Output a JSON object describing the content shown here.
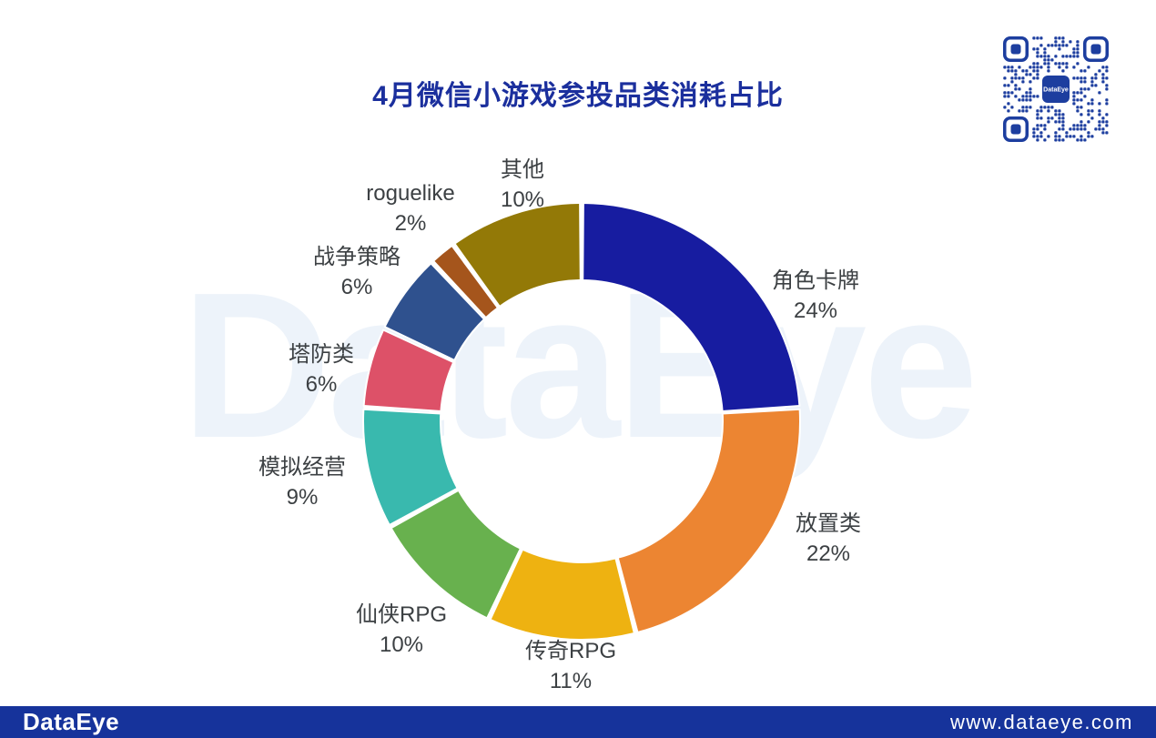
{
  "title": "4月微信小游戏参投品类消耗占比",
  "watermark": "DataEye",
  "qr": {
    "label": "DataEye"
  },
  "footer": {
    "logo": "DataEye",
    "url": "www.dataeye.com"
  },
  "colors": {
    "title_blue": "#1B2F9D",
    "label_text": "#3C4043",
    "qr_blue": "#1D3E9F",
    "watermark": "#EDF3FA",
    "footer_bar": "#16339B"
  },
  "chart_data": {
    "type": "pie",
    "subtype": "donut",
    "title": "4月微信小游戏参投品类消耗占比",
    "unit": "%",
    "start_angle": "12 o'clock, clockwise",
    "inner_radius_ratio": 0.65,
    "legend_position": "none",
    "label_style": "outside, category name over percent",
    "slices": [
      {
        "name": "角色卡牌",
        "value": 24,
        "color": "#171CA0"
      },
      {
        "name": "放置类",
        "value": 22,
        "color": "#EC8532"
      },
      {
        "name": "传奇RPG",
        "value": 11,
        "color": "#EEB211"
      },
      {
        "name": "仙侠RPG",
        "value": 10,
        "color": "#68B14E"
      },
      {
        "name": "模拟经营",
        "value": 9,
        "color": "#39B9AE"
      },
      {
        "name": "塔防类",
        "value": 6,
        "color": "#DD5168"
      },
      {
        "name": "战争策略",
        "value": 6,
        "color": "#2F518E"
      },
      {
        "name": "roguelike",
        "value": 2,
        "color": "#A5551C"
      },
      {
        "name": "其他",
        "value": 10,
        "color": "#937907"
      }
    ]
  }
}
